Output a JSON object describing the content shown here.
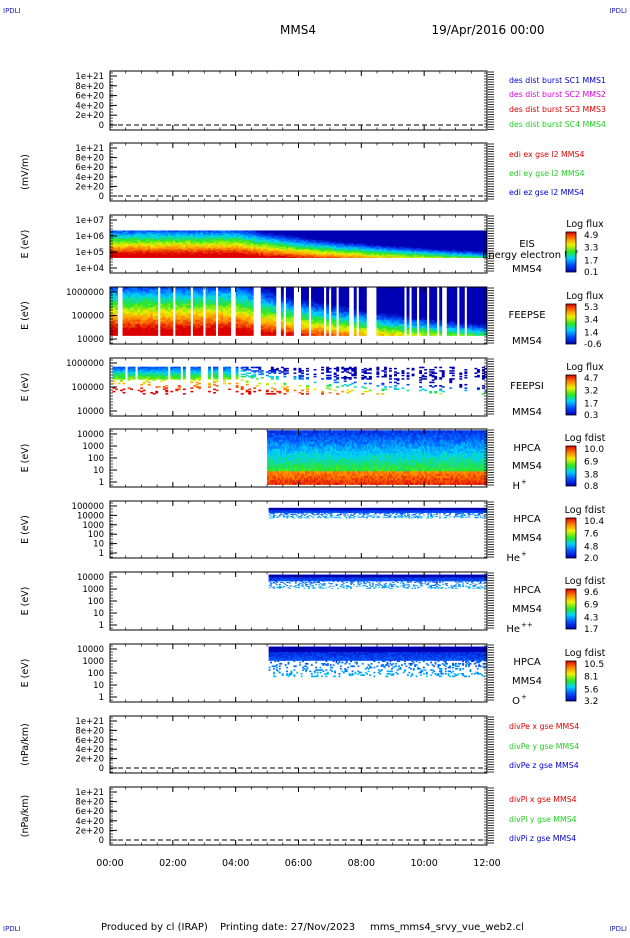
{
  "header": {
    "corner_logo": "IPDLI",
    "spacecraft": "MMS4",
    "date": "19/Apr/2016 00:00"
  },
  "footer": {
    "produced_by": "Produced by cl (IRAP)",
    "printing_date": "Printing date: 27/Nov/2023",
    "script": "mms_mms4_srvy_vue_web2.cl"
  },
  "time_axis": {
    "ticks": [
      "00:00",
      "02:00",
      "04:00",
      "06:00",
      "08:00",
      "10:00",
      "12:00"
    ],
    "range_hours": [
      0,
      12
    ]
  },
  "chart_data": [
    {
      "id": "des_dist",
      "type": "line",
      "ylabel": "",
      "ytick_labels": [
        "1e+21",
        "8e+20",
        "6e+20",
        "4e+20",
        "2e+20",
        "0"
      ],
      "ylim": [
        0,
        1e+21
      ],
      "zero_line": true,
      "series": [
        {
          "name": "des dist burst SC1 MMS1",
          "color": "#0000cc",
          "values": []
        },
        {
          "name": "des dist burst SC2 MMS2",
          "color": "#e000e0",
          "values": []
        },
        {
          "name": "des dist burst SC3 MMS3",
          "color": "#dd0000",
          "values": []
        },
        {
          "name": "des dist burst SC4 MMS4",
          "color": "#22cc22",
          "values": []
        }
      ]
    },
    {
      "id": "edi_e",
      "type": "line",
      "ylabel": "(mV/m)",
      "ytick_labels": [
        "1e+21",
        "8e+20",
        "6e+20",
        "4e+20",
        "2e+20",
        "0"
      ],
      "ylim": [
        0,
        1e+21
      ],
      "zero_line": true,
      "series": [
        {
          "name": "edi ex gse l2 MMS4",
          "color": "#dd0000",
          "values": []
        },
        {
          "name": "edi ey gse l2 MMS4",
          "color": "#22cc22",
          "values": []
        },
        {
          "name": "edi ez gse l2 MMS4",
          "color": "#0000cc",
          "values": []
        }
      ]
    },
    {
      "id": "eis",
      "type": "heatmap",
      "ylabel": "E (eV)",
      "ytick_labels": [
        "1e+07",
        "1e+06",
        "1e+05",
        "1e+04"
      ],
      "ylim": [
        10000,
        10000000
      ],
      "log_scale": true,
      "instrument": [
        "EIS",
        "MMS4"
      ],
      "overlay_text": "Energy electron tof",
      "colorbar": {
        "title": "Log flux",
        "ticks": [
          "4.9",
          "3.3",
          "1.7",
          "0.1"
        ],
        "range": [
          0.1,
          4.9
        ]
      },
      "data_window_hours": [
        0,
        12
      ],
      "band_decades": [
        4.8,
        6.2
      ]
    },
    {
      "id": "feeps_e",
      "type": "heatmap",
      "ylabel": "E (eV)",
      "ytick_labels": [
        "1000000",
        "100000",
        "10000"
      ],
      "ylim": [
        10000,
        1000000
      ],
      "log_scale": true,
      "instrument": [
        "FEEPSE",
        "MMS4"
      ],
      "colorbar": {
        "title": "Log flux",
        "ticks": [
          "5.3",
          "3.4",
          "1.4",
          "-0.6"
        ],
        "range": [
          -0.6,
          5.3
        ]
      },
      "data_window_hours": [
        0,
        12
      ],
      "band_decades": [
        4.3,
        6.0
      ]
    },
    {
      "id": "feeps_i",
      "type": "heatmap",
      "ylabel": "E (eV)",
      "ytick_labels": [
        "1000000",
        "100000",
        "10000"
      ],
      "ylim": [
        10000,
        1000000
      ],
      "log_scale": true,
      "instrument": [
        "FEEPSI",
        "MMS4"
      ],
      "colorbar": {
        "title": "Log flux",
        "ticks": [
          "4.7",
          "3.2",
          "1.7",
          "0.3"
        ],
        "range": [
          0.3,
          4.7
        ]
      },
      "data_window_hours": [
        0,
        12
      ],
      "band_decades": [
        4.75,
        5.7
      ]
    },
    {
      "id": "hpca_h",
      "type": "heatmap",
      "ylabel": "E (eV)",
      "ytick_labels": [
        "10000",
        "1000",
        "100",
        "10",
        "1"
      ],
      "ylim": [
        1,
        40000
      ],
      "log_scale": true,
      "instrument": [
        "HPCA",
        "MMS4"
      ],
      "species": "H",
      "species_charge": "+",
      "colorbar": {
        "title": "Log fdist",
        "ticks": [
          "10.0",
          "6.9",
          "3.8",
          "0.8"
        ],
        "range": [
          0.8,
          10.0
        ]
      },
      "data_window_hours": [
        5.0,
        12
      ],
      "band_decades": [
        0.2,
        4.5
      ]
    },
    {
      "id": "hpca_he",
      "type": "heatmap",
      "ylabel": "E (eV)",
      "ytick_labels": [
        "100000",
        "10000",
        "1000",
        "100",
        "10",
        "1"
      ],
      "ylim": [
        1,
        100000
      ],
      "log_scale": true,
      "instrument": [
        "HPCA",
        "MMS4"
      ],
      "species": "He",
      "species_charge": "+",
      "colorbar": {
        "title": "Log fdist",
        "ticks": [
          "10.4",
          "7.6",
          "4.8",
          "2.0"
        ],
        "range": [
          2.0,
          10.4
        ]
      },
      "data_window_hours": [
        5.05,
        12
      ],
      "band_decades": [
        3.5,
        4.4
      ]
    },
    {
      "id": "hpca_hepp",
      "type": "heatmap",
      "ylabel": "E (eV)",
      "ytick_labels": [
        "10000",
        "1000",
        "100",
        "10",
        "1"
      ],
      "ylim": [
        1,
        40000
      ],
      "log_scale": true,
      "instrument": [
        "HPCA",
        "MMS4"
      ],
      "species": "He",
      "species_charge": "++",
      "colorbar": {
        "title": "Log fdist",
        "ticks": [
          "9.6",
          "6.9",
          "4.3",
          "1.7"
        ],
        "range": [
          1.7,
          9.6
        ]
      },
      "data_window_hours": [
        5.05,
        12
      ],
      "band_decades": [
        3.3,
        4.4
      ]
    },
    {
      "id": "hpca_o",
      "type": "heatmap",
      "ylabel": "E (eV)",
      "ytick_labels": [
        "10000",
        "1000",
        "100",
        "10",
        "1"
      ],
      "ylim": [
        1,
        40000
      ],
      "log_scale": true,
      "instrument": [
        "HPCA",
        "MMS4"
      ],
      "species": "O",
      "species_charge": "+",
      "colorbar": {
        "title": "Log fdist",
        "ticks": [
          "10.5",
          "8.1",
          "5.6",
          "3.2"
        ],
        "range": [
          3.2,
          10.5
        ]
      },
      "data_window_hours": [
        5.05,
        12
      ],
      "band_decades": [
        2.0,
        4.4
      ]
    },
    {
      "id": "divpe",
      "type": "line",
      "ylabel": "(nPa/km)",
      "ytick_labels": [
        "1e+21",
        "8e+20",
        "6e+20",
        "4e+20",
        "2e+20",
        "0"
      ],
      "ylim": [
        0,
        1e+21
      ],
      "zero_line": true,
      "series": [
        {
          "name": "divPe x gse MMS4",
          "color": "#dd0000",
          "values": []
        },
        {
          "name": "divPe y gse MMS4",
          "color": "#22cc22",
          "values": []
        },
        {
          "name": "divPe z gse MMS4",
          "color": "#0000cc",
          "values": []
        }
      ]
    },
    {
      "id": "divpi",
      "type": "line",
      "ylabel": "(nPa/km)",
      "ytick_labels": [
        "1e+21",
        "8e+20",
        "6e+20",
        "4e+20",
        "2e+20",
        "0"
      ],
      "ylim": [
        0,
        1e+21
      ],
      "zero_line": true,
      "series": [
        {
          "name": "divPi x gse MMS4",
          "color": "#dd0000",
          "values": []
        },
        {
          "name": "divPi y gse MMS4",
          "color": "#22cc22",
          "values": []
        },
        {
          "name": "divPi z gse MMS4",
          "color": "#0000cc",
          "values": []
        }
      ]
    }
  ]
}
